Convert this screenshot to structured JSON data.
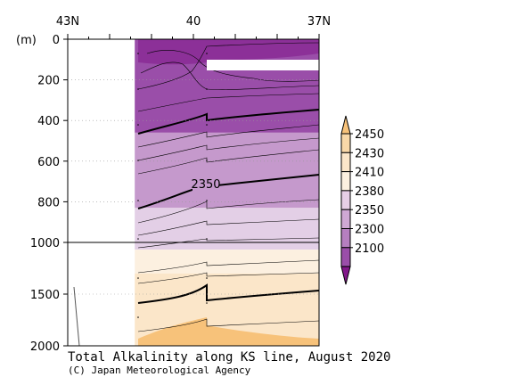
{
  "chart_data": {
    "type": "heatmap",
    "title": "Total Alkalinity along KS line, August 2020",
    "credit": "(C) Japan Meteorological Agency",
    "ylabel": "(m)",
    "x_ticks": [
      "43N",
      "40",
      "37N"
    ],
    "x_range_lat": [
      43,
      37
    ],
    "y_ticks": [
      "0",
      "200",
      "400",
      "600",
      "800",
      "1000",
      "1500",
      "2000"
    ],
    "y_range_m": [
      0,
      2000
    ],
    "y_scale_break_m": 1000,
    "data_lat_range": [
      41.4,
      37
    ],
    "contour_label": "2350",
    "colorbar": {
      "levels": [
        "2450",
        "2430",
        "2410",
        "2380",
        "2350",
        "2300",
        "2100"
      ],
      "colors": [
        "#f7c27a",
        "#f9d8a8",
        "#fbe6c9",
        "#fcf0e0",
        "#e6cfe6",
        "#cfa8d4",
        "#b57fc0",
        "#9a4ea9",
        "#82178a"
      ]
    },
    "depth_bands": [
      {
        "from_m": 0,
        "to_m": 460,
        "color": "#9a4ea9"
      },
      {
        "from_m": 460,
        "to_m": 830,
        "color": "#c599cc"
      },
      {
        "from_m": 830,
        "to_m": 1070,
        "color": "#e3cfe6"
      },
      {
        "from_m": 1070,
        "to_m": 1300,
        "color": "#fcf0e0"
      },
      {
        "from_m": 1300,
        "to_m": 2000,
        "color": "#fbe6c9"
      }
    ]
  }
}
